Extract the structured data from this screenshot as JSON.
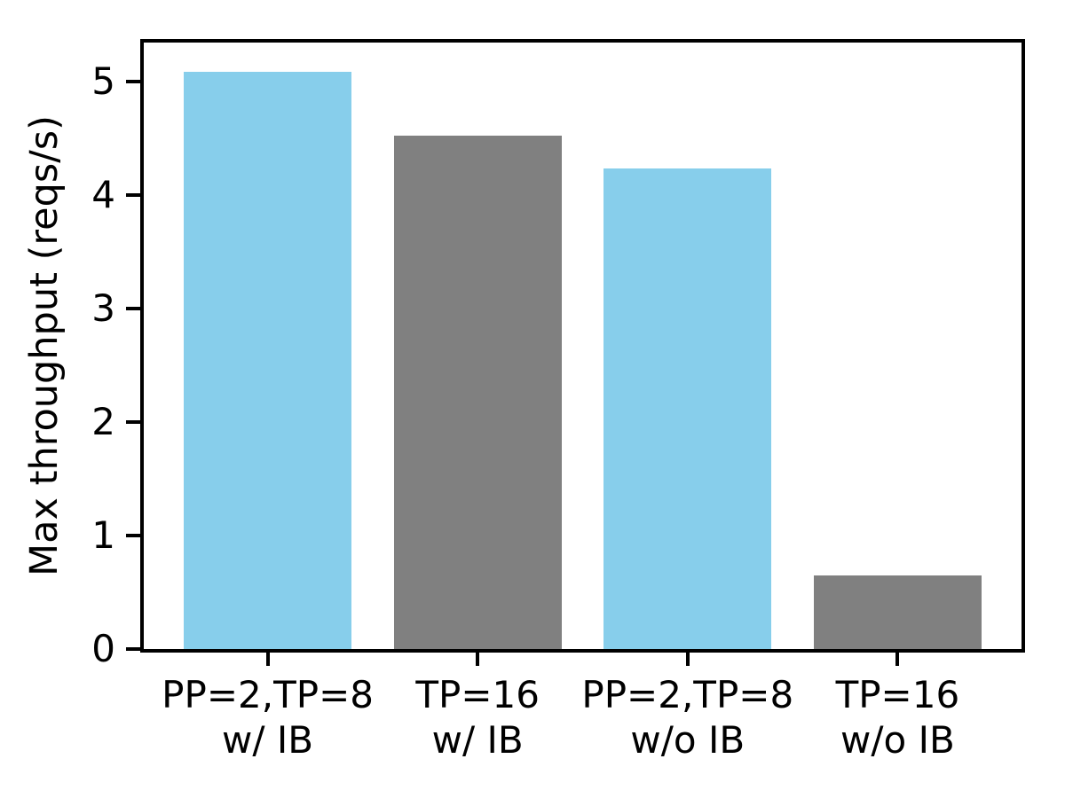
{
  "chart_data": {
    "type": "bar",
    "title": "",
    "xlabel": "",
    "ylabel": "Max throughput (reqs/s)",
    "categories": [
      "PP=2,TP=8\nw/ IB",
      "TP=16\nw/ IB",
      "PP=2,TP=8\nw/o IB",
      "TP=16\nw/o IB"
    ],
    "values": [
      5.08,
      4.52,
      4.23,
      0.65
    ],
    "bar_colors": [
      "#87CEEB",
      "#808080",
      "#87CEEB",
      "#808080"
    ],
    "yticks": [
      0,
      1,
      2,
      3,
      4,
      5
    ],
    "ylim": [
      0,
      5.34
    ],
    "xlim_units": [
      -0.59,
      3.59
    ],
    "bar_width_units": 0.8,
    "grid": false,
    "legend": "none",
    "axis_color": "#000000",
    "background_color": "#ffffff"
  }
}
